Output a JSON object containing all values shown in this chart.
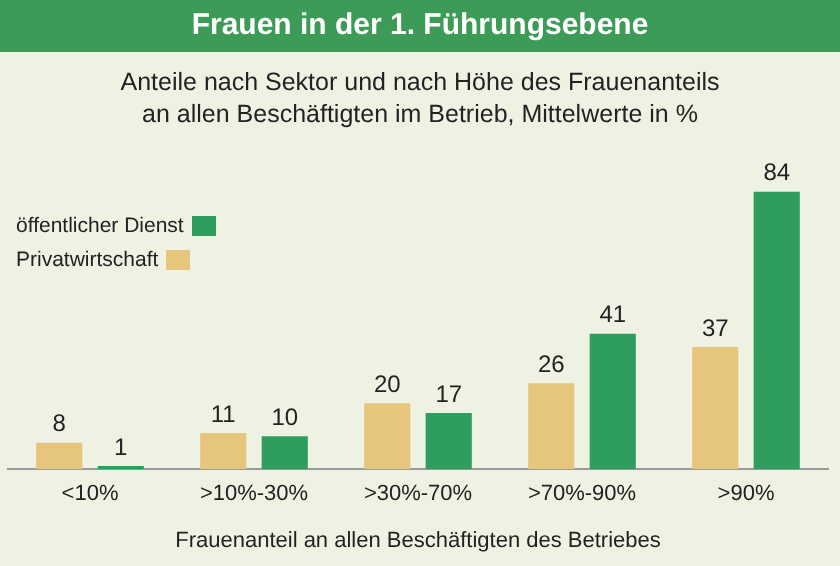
{
  "chart_data": {
    "type": "bar",
    "title": "Frauen in der 1. Führungsebene",
    "subtitle": "Anteile nach Sektor und nach Höhe des Frauenanteils an allen Beschäftigten im Betrieb, Mittelwerte in %",
    "xlabel": "Frauenanteil an allen Beschäftigten des Betriebes",
    "categories": [
      "<10%",
      ">10%-30%",
      ">30%-70%",
      ">70%-90%",
      ">90%"
    ],
    "series": [
      {
        "name": "Privatwirtschaft",
        "color": "#e6c67c",
        "values": [
          8,
          11,
          20,
          26,
          37
        ]
      },
      {
        "name": "öffentlicher Dienst",
        "color": "#2f9d5d",
        "values": [
          1,
          10,
          17,
          41,
          84
        ]
      }
    ],
    "data_labels": true,
    "legend": "top left",
    "tick_labels": "x",
    "grid": false
  }
}
